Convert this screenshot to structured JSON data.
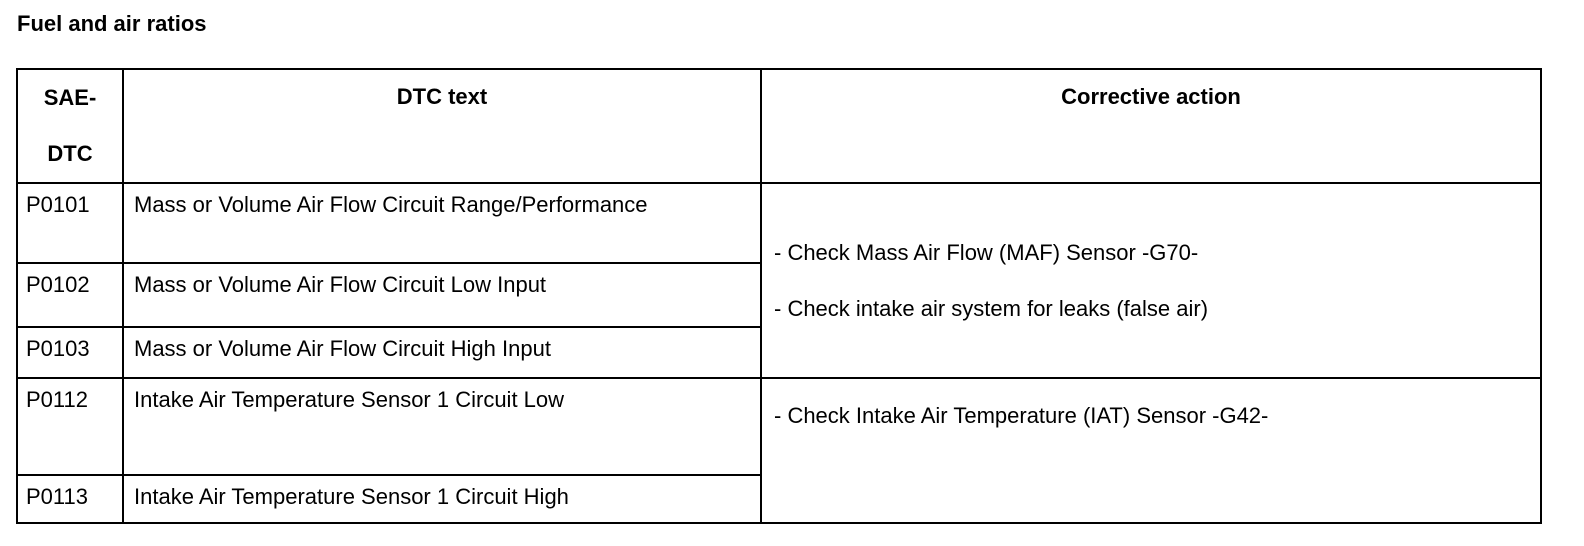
{
  "title": "Fuel and air ratios",
  "table": {
    "headers": {
      "code": "SAE-DTC",
      "code_line1": "SAE-",
      "code_line2": "DTC",
      "text": "DTC text",
      "action": "Corrective action"
    },
    "rows": [
      {
        "code": "P0101",
        "text": "Mass or Volume Air Flow Circuit Range/Performance"
      },
      {
        "code": "P0102",
        "text": "Mass or Volume Air Flow Circuit Low Input"
      },
      {
        "code": "P0103",
        "text": "Mass or Volume Air Flow Circuit High Input"
      },
      {
        "code": "P0112",
        "text": "Intake Air Temperature Sensor 1 Circuit Low"
      },
      {
        "code": "P0113",
        "text": "Intake Air Temperature Sensor 1 Circuit High"
      }
    ],
    "actions": [
      [
        "- Check Mass Air Flow (MAF) Sensor -G70-",
        "- Check intake air system for leaks (false air)"
      ],
      [
        "- Check Intake Air Temperature (IAT) Sensor -G42-"
      ]
    ]
  }
}
